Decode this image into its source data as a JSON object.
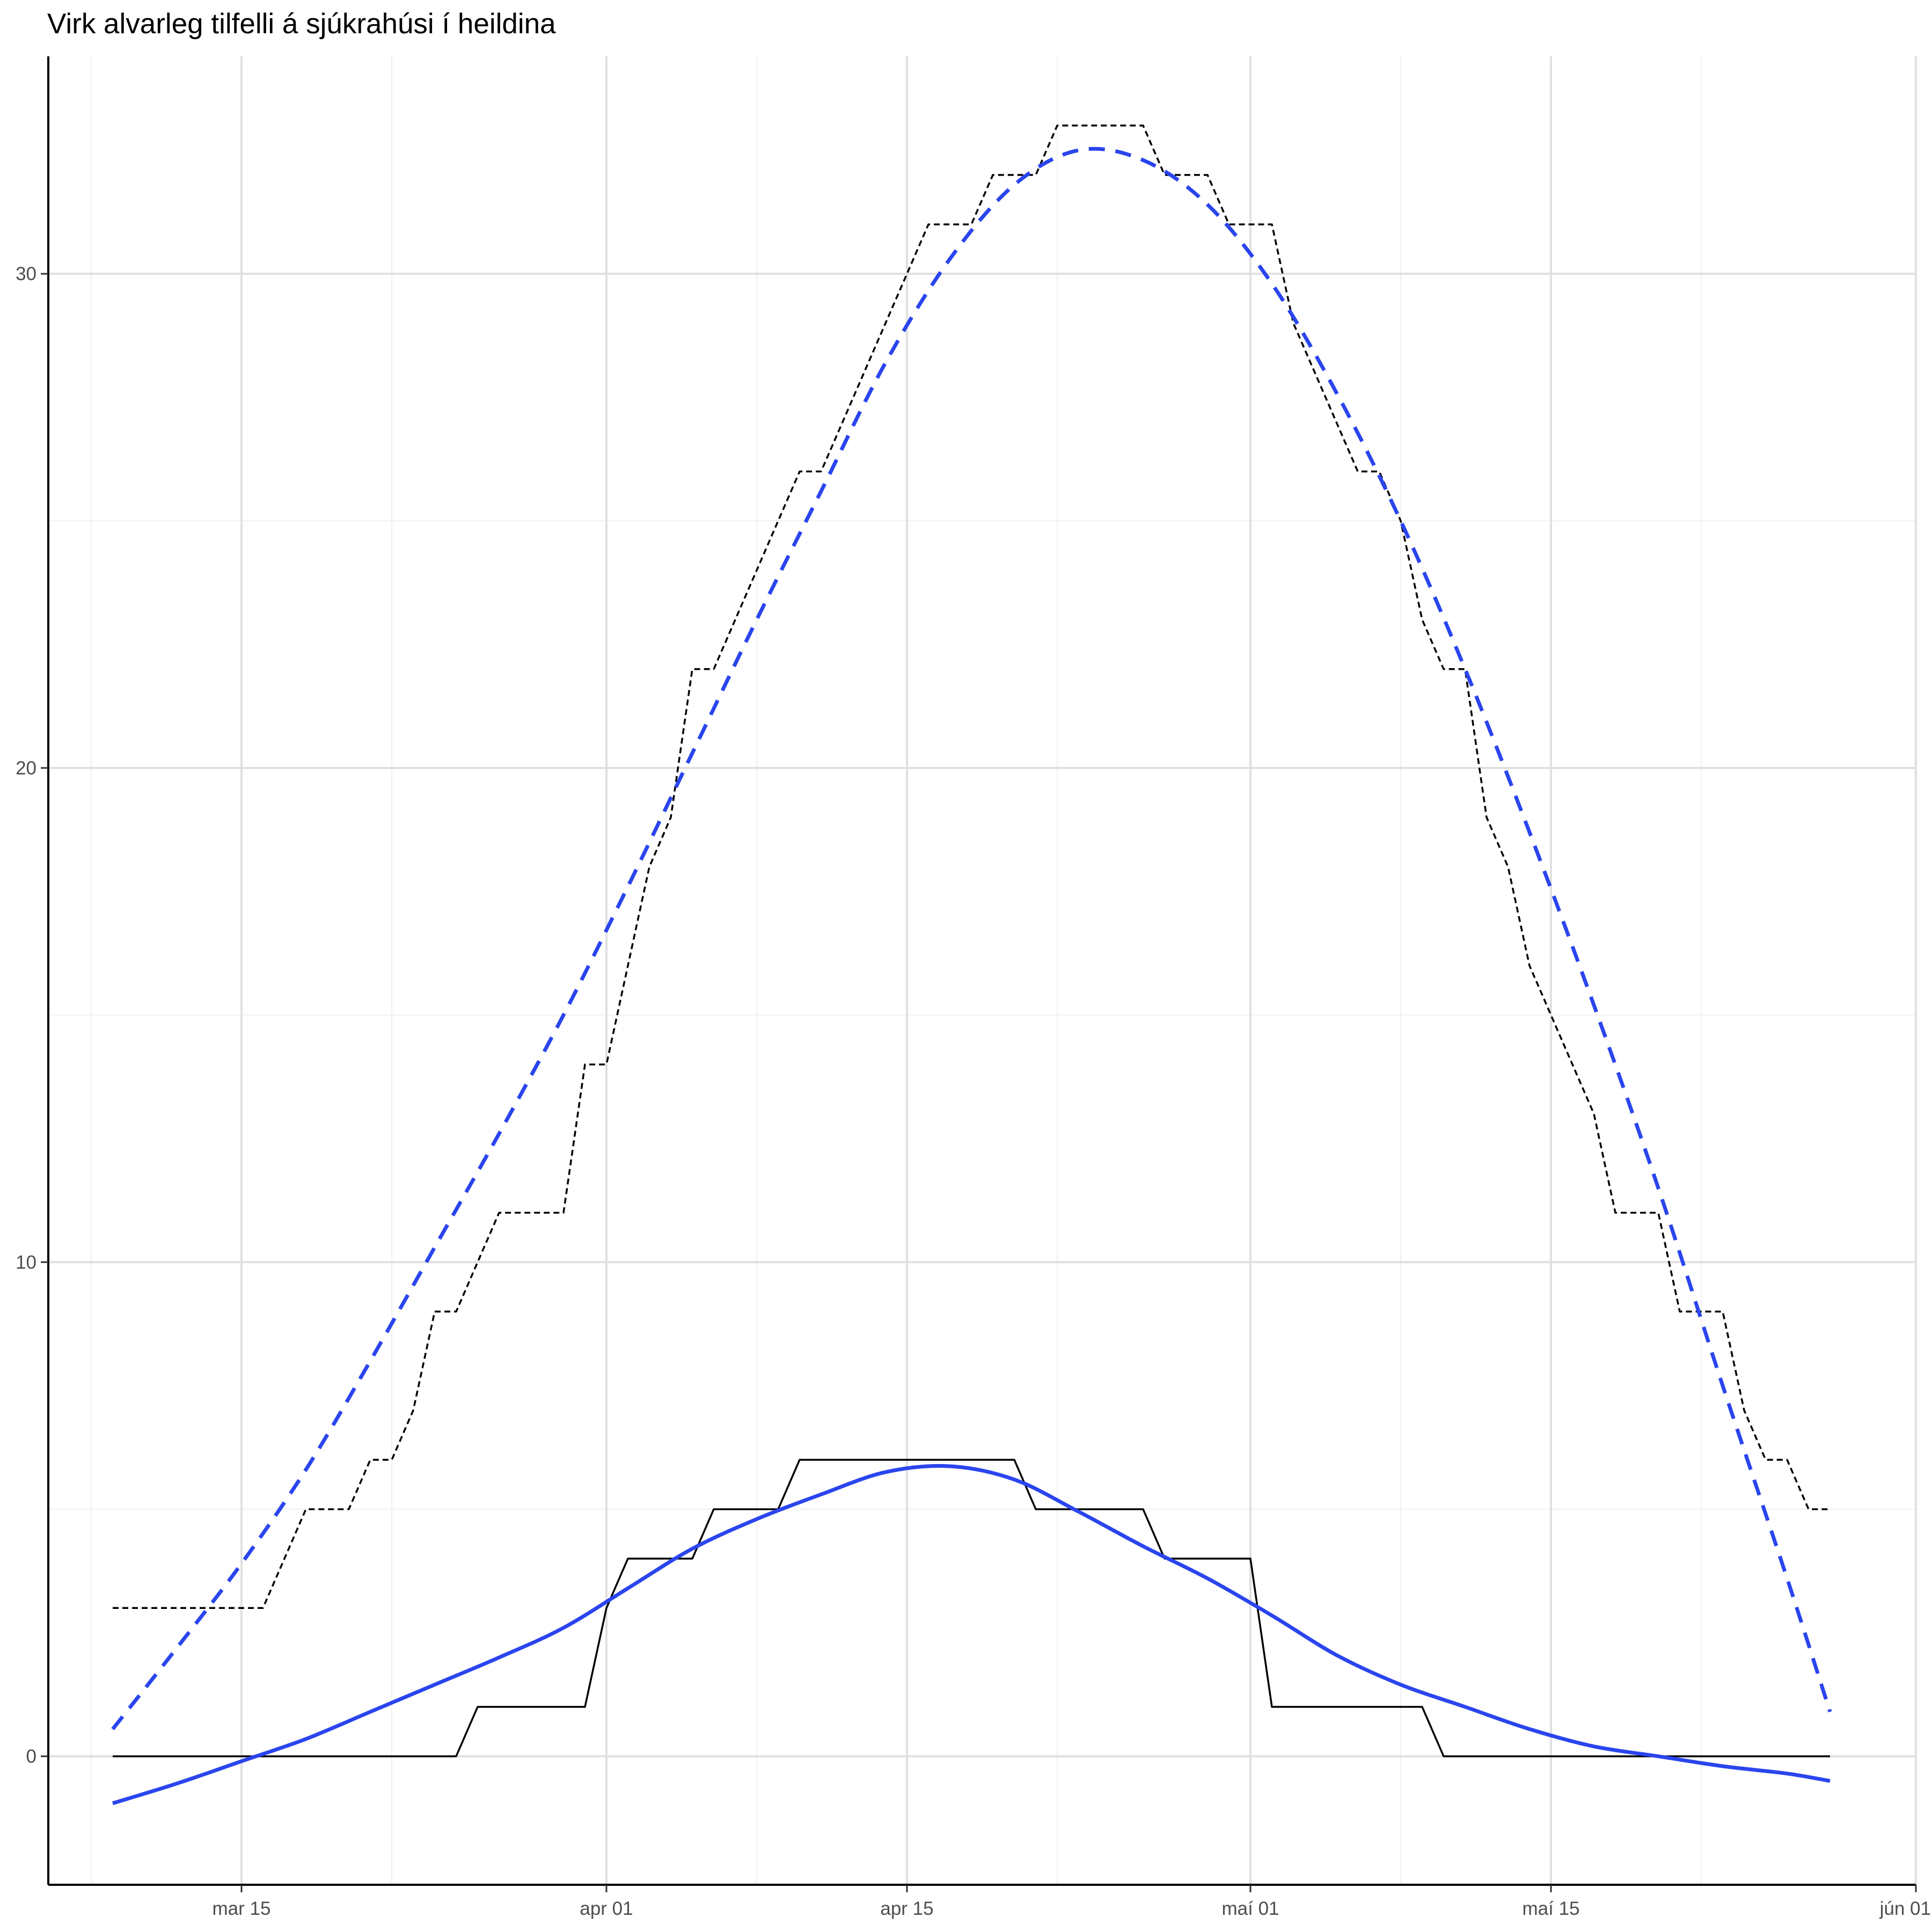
{
  "chart_data": {
    "type": "line",
    "title": "Virk alvarleg tilfelli á sjúkrahúsi í heildina",
    "xlabel": "",
    "ylabel": "",
    "x_axis": {
      "type": "date",
      "range": [
        "2020-03-06",
        "2020-06-01"
      ],
      "ticks": [
        {
          "date": "2020-03-15",
          "label": "mar 15"
        },
        {
          "date": "2020-04-01",
          "label": "apr 01"
        },
        {
          "date": "2020-04-15",
          "label": "apr 15"
        },
        {
          "date": "2020-05-01",
          "label": "maí 01"
        },
        {
          "date": "2020-05-15",
          "label": "maí 15"
        },
        {
          "date": "2020-06-01",
          "label": "jún 01"
        }
      ],
      "minor_ticks": [
        "2020-03-08",
        "2020-03-22",
        "2020-04-08",
        "2020-04-22",
        "2020-05-08",
        "2020-05-22"
      ]
    },
    "y_axis": {
      "range": [
        -2.6,
        34.4
      ],
      "ticks": [
        {
          "value": 0,
          "label": "0"
        },
        {
          "value": 10,
          "label": "10"
        },
        {
          "value": 20,
          "label": "20"
        },
        {
          "value": 30,
          "label": "30"
        }
      ],
      "minor_ticks": [
        5,
        15,
        25
      ]
    },
    "grid": true,
    "legend": "none",
    "colors": {
      "observed": "#000000",
      "fitted": "#2a45ee",
      "grid": "#e0e0e0"
    },
    "series": [
      {
        "style": "solid-black-step",
        "points": [
          [
            "2020-03-09",
            0
          ],
          [
            "2020-03-25",
            0
          ],
          [
            "2020-03-26",
            1
          ],
          [
            "2020-03-31",
            1
          ],
          [
            "2020-04-01",
            3
          ],
          [
            "2020-04-02",
            4
          ],
          [
            "2020-04-05",
            4
          ],
          [
            "2020-04-06",
            5
          ],
          [
            "2020-04-09",
            5
          ],
          [
            "2020-04-10",
            6
          ],
          [
            "2020-04-20",
            6
          ],
          [
            "2020-04-21",
            5
          ],
          [
            "2020-04-26",
            5
          ],
          [
            "2020-04-27",
            4
          ],
          [
            "2020-05-01",
            4
          ],
          [
            "2020-05-02",
            1
          ],
          [
            "2020-05-09",
            1
          ],
          [
            "2020-05-10",
            0
          ],
          [
            "2020-05-28",
            0
          ]
        ]
      },
      {
        "style": "dashed-black-step",
        "points": [
          [
            "2020-03-09",
            3
          ],
          [
            "2020-03-16",
            3
          ],
          [
            "2020-03-18",
            5
          ],
          [
            "2020-03-20",
            5
          ],
          [
            "2020-03-21",
            6
          ],
          [
            "2020-03-22",
            6
          ],
          [
            "2020-03-23",
            7
          ],
          [
            "2020-03-24",
            9
          ],
          [
            "2020-03-25",
            9
          ],
          [
            "2020-03-27",
            11
          ],
          [
            "2020-03-30",
            11
          ],
          [
            "2020-03-31",
            14
          ],
          [
            "2020-04-01",
            14
          ],
          [
            "2020-04-02",
            16
          ],
          [
            "2020-04-03",
            18
          ],
          [
            "2020-04-04",
            19
          ],
          [
            "2020-04-05",
            22
          ],
          [
            "2020-04-06",
            22
          ],
          [
            "2020-04-10",
            26
          ],
          [
            "2020-04-11",
            26
          ],
          [
            "2020-04-13",
            28
          ],
          [
            "2020-04-15",
            30
          ],
          [
            "2020-04-16",
            31
          ],
          [
            "2020-04-18",
            31
          ],
          [
            "2020-04-19",
            32
          ],
          [
            "2020-04-21",
            32
          ],
          [
            "2020-04-22",
            33
          ],
          [
            "2020-04-26",
            33
          ],
          [
            "2020-04-27",
            32
          ],
          [
            "2020-04-29",
            32
          ],
          [
            "2020-04-30",
            31
          ],
          [
            "2020-05-02",
            31
          ],
          [
            "2020-05-03",
            29
          ],
          [
            "2020-05-04",
            28
          ],
          [
            "2020-05-05",
            27
          ],
          [
            "2020-05-06",
            26
          ],
          [
            "2020-05-07",
            26
          ],
          [
            "2020-05-08",
            25
          ],
          [
            "2020-05-09",
            23
          ],
          [
            "2020-05-10",
            22
          ],
          [
            "2020-05-11",
            22
          ],
          [
            "2020-05-12",
            19
          ],
          [
            "2020-05-13",
            18
          ],
          [
            "2020-05-14",
            16
          ],
          [
            "2020-05-15",
            15
          ],
          [
            "2020-05-17",
            13
          ],
          [
            "2020-05-18",
            11
          ],
          [
            "2020-05-20",
            11
          ],
          [
            "2020-05-21",
            9
          ],
          [
            "2020-05-23",
            9
          ],
          [
            "2020-05-24",
            7
          ],
          [
            "2020-05-25",
            6
          ],
          [
            "2020-05-26",
            6
          ],
          [
            "2020-05-27",
            5
          ],
          [
            "2020-05-28",
            5
          ]
        ]
      },
      {
        "style": "solid-blue-smooth",
        "points": [
          [
            "2020-03-09",
            -0.95
          ],
          [
            "2020-03-12",
            -0.55
          ],
          [
            "2020-03-15",
            -0.1
          ],
          [
            "2020-03-18",
            0.35
          ],
          [
            "2020-03-21",
            0.9
          ],
          [
            "2020-03-24",
            1.45
          ],
          [
            "2020-03-27",
            2.0
          ],
          [
            "2020-03-30",
            2.6
          ],
          [
            "2020-04-02",
            3.4
          ],
          [
            "2020-04-05",
            4.2
          ],
          [
            "2020-04-08",
            4.8
          ],
          [
            "2020-04-11",
            5.3
          ],
          [
            "2020-04-14",
            5.75
          ],
          [
            "2020-04-17",
            5.87
          ],
          [
            "2020-04-20",
            5.6
          ],
          [
            "2020-04-23",
            4.95
          ],
          [
            "2020-04-26",
            4.25
          ],
          [
            "2020-04-29",
            3.6
          ],
          [
            "2020-05-02",
            2.85
          ],
          [
            "2020-05-05",
            2.05
          ],
          [
            "2020-05-08",
            1.45
          ],
          [
            "2020-05-11",
            1.0
          ],
          [
            "2020-05-14",
            0.55
          ],
          [
            "2020-05-17",
            0.2
          ],
          [
            "2020-05-20",
            0.0
          ],
          [
            "2020-05-23",
            -0.2
          ],
          [
            "2020-05-26",
            -0.35
          ],
          [
            "2020-05-28",
            -0.5
          ]
        ]
      },
      {
        "style": "dashed-blue-smooth",
        "points": [
          [
            "2020-03-09",
            0.55
          ],
          [
            "2020-03-12",
            2.2
          ],
          [
            "2020-03-15",
            3.9
          ],
          [
            "2020-03-18",
            5.8
          ],
          [
            "2020-03-21",
            8.0
          ],
          [
            "2020-03-24",
            10.3
          ],
          [
            "2020-03-27",
            12.6
          ],
          [
            "2020-03-30",
            15.0
          ],
          [
            "2020-04-02",
            17.6
          ],
          [
            "2020-04-05",
            20.3
          ],
          [
            "2020-04-08",
            23.0
          ],
          [
            "2020-04-11",
            25.6
          ],
          [
            "2020-04-14",
            28.2
          ],
          [
            "2020-04-17",
            30.3
          ],
          [
            "2020-04-20",
            31.8
          ],
          [
            "2020-04-23",
            32.5
          ],
          [
            "2020-04-26",
            32.3
          ],
          [
            "2020-04-29",
            31.4
          ],
          [
            "2020-05-02",
            29.8
          ],
          [
            "2020-05-05",
            27.6
          ],
          [
            "2020-05-08",
            25.0
          ],
          [
            "2020-05-11",
            22.0
          ],
          [
            "2020-05-14",
            18.7
          ],
          [
            "2020-05-17",
            15.2
          ],
          [
            "2020-05-20",
            11.5
          ],
          [
            "2020-05-23",
            7.5
          ],
          [
            "2020-05-26",
            3.6
          ],
          [
            "2020-05-28",
            0.9
          ]
        ]
      }
    ]
  }
}
